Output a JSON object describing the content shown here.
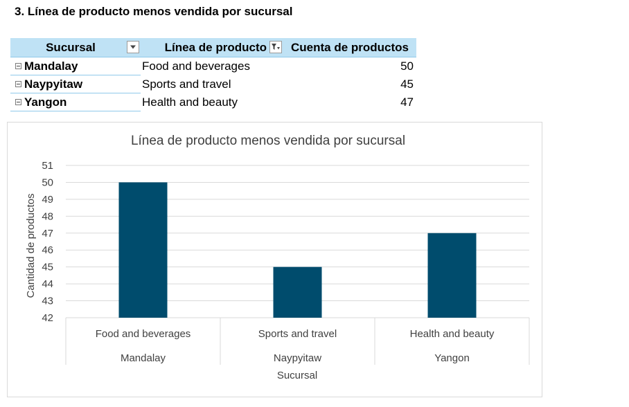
{
  "heading": "3. Línea de producto menos vendida por sucursal",
  "pivot": {
    "headers": {
      "sucursal": "Sucursal",
      "linea": "Línea de producto",
      "cuenta": "Cuenta de productos"
    },
    "rows": [
      {
        "sucursal": "Mandalay",
        "linea": "Food and beverages",
        "cuenta": "50"
      },
      {
        "sucursal": "Naypyitaw",
        "linea": "Sports and travel",
        "cuenta": "45"
      },
      {
        "sucursal": "Yangon",
        "linea": "Health and beauty",
        "cuenta": "47"
      }
    ]
  },
  "chart_data": {
    "type": "bar",
    "title": "Línea de producto menos vendida por sucursal",
    "xlabel": "Sucursal",
    "ylabel": "Cantidad de productos",
    "categories": [
      {
        "product_line": "Food and beverages",
        "branch": "Mandalay"
      },
      {
        "product_line": "Sports and travel",
        "branch": "Naypyitaw"
      },
      {
        "product_line": "Health and beauty",
        "branch": "Yangon"
      }
    ],
    "values": [
      50,
      45,
      47
    ],
    "ylim": [
      42,
      51
    ],
    "yticks": [
      "42",
      "43",
      "44",
      "45",
      "46",
      "47",
      "48",
      "49",
      "50",
      "51"
    ],
    "bar_color": "#004c6d",
    "grid": true,
    "legend": "none"
  }
}
